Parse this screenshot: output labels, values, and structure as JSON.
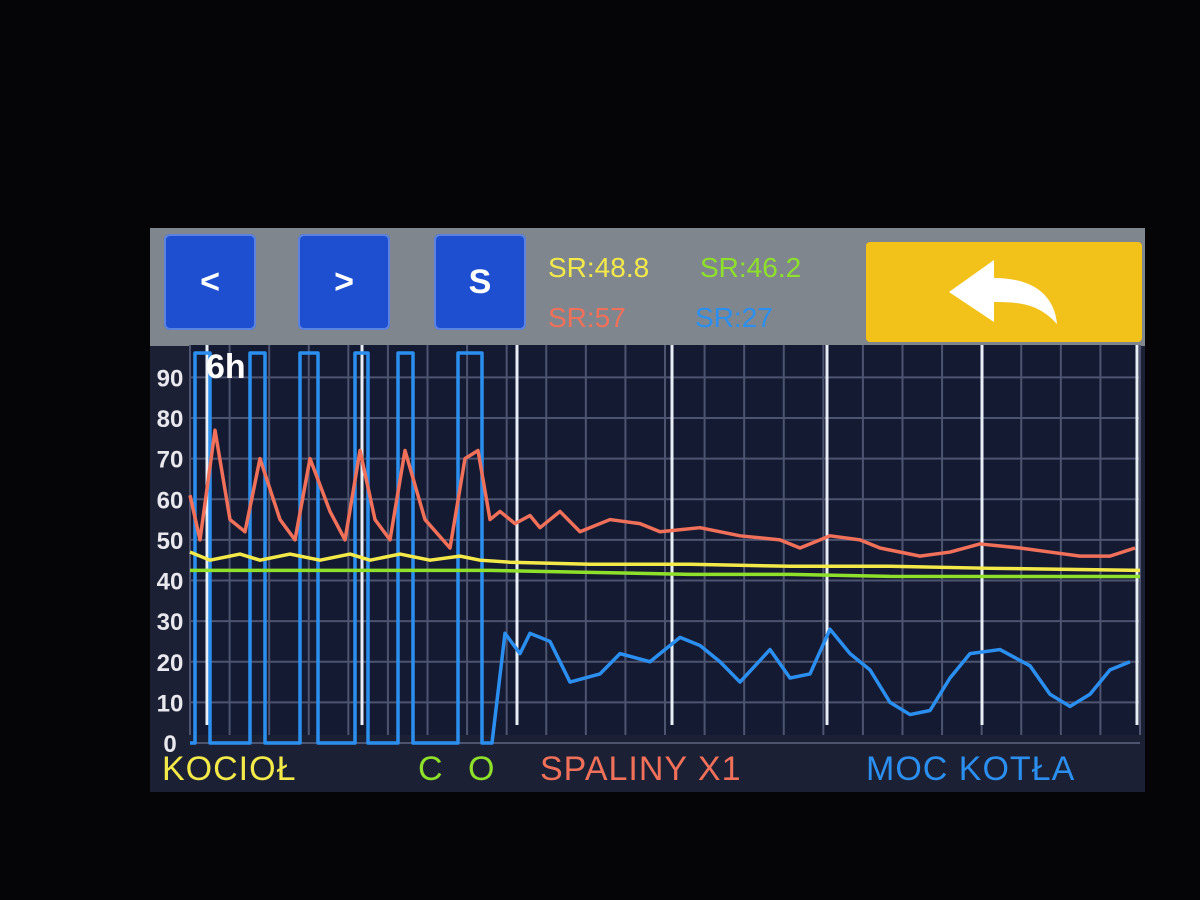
{
  "header": {
    "prev_label": "<",
    "next_label": ">",
    "s_label": "S",
    "sr_kociol": "SR:48.8",
    "sr_co": "SR:46.2",
    "sr_spaliny": "SR:57",
    "sr_moc": "SR:27",
    "back_icon": "back-arrow-icon"
  },
  "colors": {
    "kociol": "#f3ea4a",
    "co": "#8fe02a",
    "spaliny": "#f0705a",
    "moc": "#2b8ff0",
    "back": "#f2c21b",
    "button": "#1d4fd0"
  },
  "chart_data": {
    "type": "line",
    "title": "6h",
    "yticks": [
      0,
      10,
      20,
      30,
      40,
      50,
      60,
      70,
      80,
      90
    ],
    "ylim": [
      0,
      96
    ],
    "xlim": [
      0,
      95
    ],
    "grid": true,
    "legend_placement": "bottom",
    "series": [
      {
        "name": "KOCIOŁ",
        "color": "#f3ea4a",
        "points": [
          [
            0,
            47
          ],
          [
            2,
            45
          ],
          [
            5,
            46.5
          ],
          [
            7,
            45
          ],
          [
            10,
            46.5
          ],
          [
            13,
            45
          ],
          [
            16,
            46.5
          ],
          [
            18,
            45
          ],
          [
            21,
            46.5
          ],
          [
            24,
            45
          ],
          [
            27,
            46
          ],
          [
            29,
            45
          ],
          [
            32,
            44.5
          ],
          [
            40,
            44
          ],
          [
            50,
            44
          ],
          [
            60,
            43.5
          ],
          [
            70,
            43.5
          ],
          [
            80,
            43
          ],
          [
            95,
            42.5
          ]
        ]
      },
      {
        "name": "C O",
        "color": "#8fe02a",
        "points": [
          [
            0,
            42.5
          ],
          [
            10,
            42.5
          ],
          [
            20,
            42.5
          ],
          [
            30,
            42.5
          ],
          [
            40,
            42
          ],
          [
            50,
            41.5
          ],
          [
            60,
            41.5
          ],
          [
            70,
            41
          ],
          [
            80,
            41
          ],
          [
            95,
            41
          ]
        ]
      },
      {
        "name": "SPALINY X1",
        "color": "#f0705a",
        "points": [
          [
            0,
            61
          ],
          [
            1,
            50
          ],
          [
            2.5,
            77
          ],
          [
            4,
            55
          ],
          [
            5.5,
            52
          ],
          [
            7,
            70
          ],
          [
            9,
            55
          ],
          [
            10.5,
            50
          ],
          [
            12,
            70
          ],
          [
            14,
            57
          ],
          [
            15.5,
            50
          ],
          [
            17,
            72
          ],
          [
            18.5,
            55
          ],
          [
            20,
            50
          ],
          [
            21.5,
            72
          ],
          [
            23.5,
            55
          ],
          [
            26,
            48
          ],
          [
            27.5,
            70
          ],
          [
            28.8,
            72
          ],
          [
            30,
            55
          ],
          [
            31,
            57
          ],
          [
            32.5,
            54
          ],
          [
            34,
            56
          ],
          [
            35,
            53
          ],
          [
            37,
            57
          ],
          [
            39,
            52
          ],
          [
            42,
            55
          ],
          [
            45,
            54
          ],
          [
            47,
            52
          ],
          [
            51,
            53
          ],
          [
            55,
            51
          ],
          [
            59,
            50
          ],
          [
            61,
            48
          ],
          [
            64,
            51
          ],
          [
            67,
            50
          ],
          [
            69,
            48
          ],
          [
            73,
            46
          ],
          [
            76,
            47
          ],
          [
            79,
            49
          ],
          [
            83,
            48
          ],
          [
            86,
            47
          ],
          [
            89,
            46
          ],
          [
            92,
            46
          ],
          [
            94.5,
            48
          ]
        ]
      },
      {
        "name": "MOC KOTŁA",
        "color": "#2b8ff0",
        "points": [
          [
            0,
            0
          ],
          [
            0.5,
            0
          ],
          [
            0.5,
            96
          ],
          [
            2,
            96
          ],
          [
            2,
            0
          ],
          [
            6,
            0
          ],
          [
            6,
            96
          ],
          [
            7.5,
            96
          ],
          [
            7.5,
            0
          ],
          [
            11,
            0
          ],
          [
            11,
            96
          ],
          [
            12.8,
            96
          ],
          [
            12.8,
            0
          ],
          [
            16.5,
            0
          ],
          [
            16.5,
            96
          ],
          [
            17.8,
            96
          ],
          [
            17.8,
            0
          ],
          [
            20.8,
            0
          ],
          [
            20.8,
            96
          ],
          [
            22.3,
            96
          ],
          [
            22.3,
            0
          ],
          [
            26.8,
            0
          ],
          [
            26.8,
            96
          ],
          [
            29.2,
            96
          ],
          [
            29.2,
            0
          ],
          [
            30.2,
            0
          ],
          [
            31.5,
            27
          ],
          [
            33,
            22
          ],
          [
            34,
            27
          ],
          [
            36,
            25
          ],
          [
            38,
            15
          ],
          [
            41,
            17
          ],
          [
            43,
            22
          ],
          [
            46,
            20
          ],
          [
            49,
            26
          ],
          [
            51,
            24
          ],
          [
            53,
            20
          ],
          [
            55,
            15
          ],
          [
            58,
            23
          ],
          [
            60,
            16
          ],
          [
            62,
            17
          ],
          [
            64,
            28
          ],
          [
            66,
            22
          ],
          [
            68,
            18
          ],
          [
            70,
            10
          ],
          [
            72,
            7
          ],
          [
            74,
            8
          ],
          [
            76,
            16
          ],
          [
            78,
            22
          ],
          [
            81,
            23
          ],
          [
            84,
            19
          ],
          [
            86,
            12
          ],
          [
            88,
            9
          ],
          [
            90,
            12
          ],
          [
            92,
            18
          ],
          [
            94,
            20
          ]
        ]
      }
    ]
  }
}
